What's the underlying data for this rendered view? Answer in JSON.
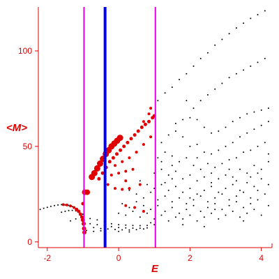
{
  "chart_data": {
    "type": "scatter",
    "title": "",
    "xlabel": "E",
    "ylabel": "<M>",
    "xlim": [
      -2.25,
      4.3
    ],
    "ylim": [
      -3,
      123
    ],
    "xticks": [
      -2,
      0,
      2,
      4
    ],
    "yticks": [
      0,
      50,
      100
    ],
    "grid": false,
    "legend": "none",
    "colors": {
      "axis": "#e00000",
      "points": "#000000",
      "highlight": "#e00000",
      "blue_line": "#0000ff",
      "magenta_line": "#e000e0"
    },
    "vertical_lines": [
      {
        "x": -0.97,
        "color": "#e000e0"
      },
      {
        "x": -0.38,
        "color": "#0000ff"
      },
      {
        "x": 1.03,
        "color": "#e000e0"
      }
    ],
    "series": [
      {
        "color": "#000000",
        "marker": "dot",
        "points": [
          [
            -2.2,
            17
          ],
          [
            -2.1,
            17.6
          ],
          [
            -2.0,
            18.1
          ],
          [
            -1.9,
            18.6
          ],
          [
            -1.8,
            19
          ],
          [
            -1.7,
            19.3
          ],
          [
            -1.6,
            19.5
          ],
          [
            -1.5,
            19.4
          ],
          [
            -1.4,
            19.1
          ],
          [
            -1.3,
            18.5
          ],
          [
            -1.2,
            17.5
          ],
          [
            -1.1,
            16
          ],
          [
            -1.6,
            15.5
          ],
          [
            -1.5,
            16
          ],
          [
            -1.4,
            16.4
          ],
          [
            -1.3,
            16.5
          ],
          [
            -1.2,
            16.2
          ],
          [
            -1.1,
            15.5
          ],
          [
            -1.0,
            14.5
          ],
          [
            -1.35,
            11
          ],
          [
            -1.2,
            12
          ],
          [
            -1.0,
            12.5
          ],
          [
            -0.8,
            12.2
          ],
          [
            -0.6,
            11.5
          ],
          [
            -0.4,
            10.5
          ],
          [
            -0.2,
            9.5
          ],
          [
            0.0,
            9
          ],
          [
            0.2,
            8.8
          ],
          [
            0.4,
            8.6
          ],
          [
            0.6,
            8.5
          ],
          [
            0.8,
            8.6
          ],
          [
            1.0,
            9
          ],
          [
            -1.0,
            10
          ],
          [
            -0.8,
            9.5
          ],
          [
            -0.6,
            9
          ],
          [
            -0.4,
            8.5
          ],
          [
            -0.2,
            8
          ],
          [
            0.0,
            7.5
          ],
          [
            0.2,
            7.3
          ],
          [
            0.4,
            7.2
          ],
          [
            0.6,
            7.1
          ],
          [
            0.8,
            7.3
          ],
          [
            -0.7,
            7.5
          ],
          [
            -0.5,
            7
          ],
          [
            -0.3,
            6.8
          ],
          [
            -0.1,
            6.5
          ],
          [
            0.1,
            6.3
          ],
          [
            0.3,
            6.2
          ],
          [
            0.5,
            6.4
          ],
          [
            0.7,
            6.8
          ],
          [
            -0.9,
            6
          ],
          [
            -0.7,
            5.5
          ],
          [
            -0.5,
            5.8
          ],
          [
            0.0,
            5.5
          ],
          [
            0.3,
            5.2
          ],
          [
            1.1,
            74
          ],
          [
            1.3,
            78
          ],
          [
            1.5,
            81
          ],
          [
            1.7,
            85
          ],
          [
            1.9,
            88
          ],
          [
            2.1,
            92
          ],
          [
            2.3,
            96
          ],
          [
            2.5,
            99
          ],
          [
            2.7,
            103
          ],
          [
            2.9,
            106
          ],
          [
            3.1,
            109
          ],
          [
            3.3,
            112
          ],
          [
            3.5,
            114.5
          ],
          [
            3.7,
            117
          ],
          [
            3.9,
            119
          ],
          [
            4.1,
            121
          ],
          [
            1.9,
            74
          ],
          [
            2.1,
            70
          ],
          [
            2.3,
            74
          ],
          [
            2.5,
            77
          ],
          [
            2.7,
            80
          ],
          [
            2.9,
            83
          ],
          [
            3.1,
            86
          ],
          [
            3.3,
            88
          ],
          [
            3.5,
            90
          ],
          [
            3.7,
            92
          ],
          [
            3.9,
            94
          ],
          [
            4.1,
            96
          ],
          [
            1.6,
            62
          ],
          [
            1.8,
            64
          ],
          [
            2.0,
            65
          ],
          [
            2.2,
            64
          ],
          [
            2.4,
            60
          ],
          [
            2.6,
            57
          ],
          [
            2.8,
            58
          ],
          [
            3.0,
            60
          ],
          [
            3.2,
            63
          ],
          [
            3.4,
            65
          ],
          [
            3.6,
            67
          ],
          [
            3.8,
            68
          ],
          [
            4.0,
            69
          ],
          [
            4.2,
            70
          ],
          [
            1.2,
            52
          ],
          [
            1.4,
            56
          ],
          [
            1.6,
            58
          ],
          [
            1.8,
            55
          ],
          [
            2.0,
            50
          ],
          [
            2.2,
            51
          ],
          [
            2.4,
            47
          ],
          [
            2.6,
            46
          ],
          [
            2.8,
            48
          ],
          [
            3.0,
            50
          ],
          [
            3.2,
            52
          ],
          [
            3.4,
            55
          ],
          [
            3.6,
            57
          ],
          [
            3.8,
            59
          ],
          [
            4.0,
            61
          ],
          [
            4.2,
            63
          ],
          [
            1.1,
            44
          ],
          [
            1.3,
            47
          ],
          [
            1.5,
            45
          ],
          [
            1.7,
            42
          ],
          [
            1.9,
            44
          ],
          [
            2.1,
            40
          ],
          [
            2.3,
            38
          ],
          [
            2.5,
            41
          ],
          [
            2.7,
            39
          ],
          [
            2.9,
            41
          ],
          [
            3.1,
            43
          ],
          [
            3.3,
            44
          ],
          [
            3.5,
            47
          ],
          [
            3.7,
            48
          ],
          [
            3.9,
            50
          ],
          [
            4.1,
            52
          ],
          [
            1.0,
            36
          ],
          [
            1.2,
            38
          ],
          [
            1.4,
            35
          ],
          [
            1.6,
            37
          ],
          [
            1.8,
            33
          ],
          [
            2.0,
            35
          ],
          [
            2.2,
            32
          ],
          [
            2.4,
            34
          ],
          [
            2.6,
            31
          ],
          [
            2.8,
            33
          ],
          [
            3.0,
            35
          ],
          [
            3.2,
            34
          ],
          [
            3.4,
            38
          ],
          [
            3.6,
            36
          ],
          [
            3.8,
            40
          ],
          [
            4.0,
            38
          ],
          [
            4.2,
            42
          ],
          [
            0.6,
            32
          ],
          [
            0.8,
            30
          ],
          [
            1.0,
            28
          ],
          [
            1.2,
            30
          ],
          [
            1.4,
            27
          ],
          [
            1.6,
            29
          ],
          [
            1.8,
            26
          ],
          [
            2.0,
            28
          ],
          [
            2.2,
            25
          ],
          [
            2.4,
            27
          ],
          [
            2.6,
            29
          ],
          [
            2.8,
            26
          ],
          [
            3.0,
            28
          ],
          [
            3.2,
            30
          ],
          [
            3.4,
            27
          ],
          [
            3.6,
            31
          ],
          [
            3.8,
            29
          ],
          [
            4.0,
            33
          ],
          [
            4.2,
            30
          ],
          [
            0.3,
            27
          ],
          [
            0.5,
            25
          ],
          [
            0.7,
            23
          ],
          [
            0.9,
            26
          ],
          [
            1.1,
            22
          ],
          [
            1.3,
            24
          ],
          [
            1.5,
            21
          ],
          [
            1.7,
            23
          ],
          [
            1.9,
            20
          ],
          [
            2.1,
            22
          ],
          [
            2.3,
            24
          ],
          [
            2.5,
            21
          ],
          [
            2.7,
            23
          ],
          [
            2.9,
            25
          ],
          [
            3.1,
            22
          ],
          [
            3.3,
            24
          ],
          [
            3.5,
            26
          ],
          [
            3.7,
            23
          ],
          [
            3.9,
            27
          ],
          [
            4.1,
            25
          ],
          [
            0.1,
            20
          ],
          [
            0.3,
            18
          ],
          [
            0.5,
            21
          ],
          [
            0.7,
            19
          ],
          [
            0.9,
            17
          ],
          [
            1.1,
            19
          ],
          [
            1.3,
            16
          ],
          [
            1.5,
            18
          ],
          [
            1.7,
            15
          ],
          [
            1.9,
            17
          ],
          [
            2.1,
            19
          ],
          [
            2.3,
            16
          ],
          [
            2.5,
            18
          ],
          [
            2.7,
            20
          ],
          [
            2.9,
            17
          ],
          [
            3.1,
            19
          ],
          [
            3.3,
            21
          ],
          [
            3.5,
            18
          ],
          [
            3.7,
            20
          ],
          [
            3.9,
            22
          ],
          [
            4.2,
            19
          ],
          [
            0.0,
            15
          ],
          [
            0.2,
            14
          ],
          [
            0.4,
            16
          ],
          [
            0.6,
            13
          ],
          [
            0.8,
            15
          ],
          [
            1.0,
            12
          ],
          [
            1.2,
            14
          ],
          [
            1.4,
            11
          ],
          [
            1.6,
            13
          ],
          [
            1.8,
            12
          ],
          [
            2.0,
            14
          ],
          [
            2.2,
            11
          ],
          [
            2.4,
            13
          ],
          [
            2.6,
            15
          ],
          [
            2.8,
            12
          ],
          [
            3.0,
            14
          ],
          [
            3.2,
            16
          ],
          [
            3.4,
            13
          ],
          [
            3.6,
            15
          ],
          [
            3.8,
            17
          ],
          [
            4.0,
            14
          ],
          [
            1.2,
            42
          ],
          [
            1.5,
            40
          ],
          [
            2.2,
            44
          ],
          [
            2.6,
            36
          ],
          [
            3.3,
            32
          ],
          [
            3.7,
            34
          ],
          [
            1.3,
            31
          ],
          [
            2.0,
            23
          ],
          [
            2.7,
            17
          ],
          [
            3.5,
            11
          ],
          [
            1.8,
            9
          ],
          [
            2.4,
            8
          ],
          [
            0.9,
            10
          ],
          [
            1.5,
            33
          ],
          [
            3.1,
            38
          ],
          [
            3.9,
            36
          ],
          [
            4.2,
            46
          ]
        ]
      },
      {
        "color": "#e00000",
        "marker": "scaled",
        "points": [
          [
            -1.55,
            19.5,
            2
          ],
          [
            -1.45,
            19.3,
            2
          ],
          [
            -1.35,
            18.8,
            2
          ],
          [
            -1.25,
            18,
            2
          ],
          [
            -1.18,
            17,
            2.5
          ],
          [
            -1.12,
            16,
            2.5
          ],
          [
            -1.07,
            14.5,
            2.5
          ],
          [
            -1.03,
            13,
            2.5
          ],
          [
            -1.0,
            11.5,
            3
          ],
          [
            -0.98,
            9.5,
            3
          ],
          [
            -0.97,
            7,
            3
          ],
          [
            -0.96,
            5,
            3
          ],
          [
            -1.0,
            20,
            2.5
          ],
          [
            -0.95,
            26,
            4
          ],
          [
            -0.88,
            26,
            4
          ],
          [
            -0.75,
            34,
            4.5
          ],
          [
            -0.68,
            36,
            4.5
          ],
          [
            -0.6,
            38.5,
            4.5
          ],
          [
            -0.52,
            41,
            4.5
          ],
          [
            -0.44,
            43.5,
            4.5
          ],
          [
            -0.36,
            46,
            4.5
          ],
          [
            -0.28,
            48,
            4.5
          ],
          [
            -0.2,
            50,
            4.5
          ],
          [
            -0.12,
            51.5,
            4.5
          ],
          [
            -0.04,
            53,
            4.5
          ],
          [
            0.04,
            54.5,
            4.5
          ],
          [
            -0.55,
            33,
            2.5
          ],
          [
            -0.45,
            36,
            2.5
          ],
          [
            -0.35,
            39,
            2.5
          ],
          [
            -0.25,
            42,
            2.5
          ],
          [
            -0.15,
            44,
            2.5
          ],
          [
            -0.05,
            46,
            2.5
          ],
          [
            0.05,
            48,
            2.5
          ],
          [
            0.15,
            50,
            2.5
          ],
          [
            0.25,
            52,
            2.5
          ],
          [
            0.35,
            54,
            2.5
          ],
          [
            0.45,
            56,
            2.5
          ],
          [
            0.55,
            58,
            2.5
          ],
          [
            0.65,
            60,
            2.5
          ],
          [
            0.75,
            61.5,
            2.5
          ],
          [
            0.85,
            63,
            2.5
          ],
          [
            0.95,
            65,
            2.5
          ],
          [
            1.0,
            66,
            2.5
          ],
          [
            -0.1,
            40,
            2
          ],
          [
            0.1,
            42,
            2
          ],
          [
            0.3,
            44,
            2
          ],
          [
            0.5,
            47,
            2
          ],
          [
            0.7,
            51,
            2
          ],
          [
            0.9,
            55,
            2
          ],
          [
            -0.2,
            35,
            2
          ],
          [
            0.0,
            36,
            2
          ],
          [
            0.2,
            37,
            2
          ],
          [
            0.4,
            38,
            2
          ],
          [
            -0.1,
            28,
            2
          ],
          [
            0.1,
            27.5,
            2
          ],
          [
            0.3,
            28,
            2
          ],
          [
            -0.3,
            30,
            2
          ],
          [
            0.2,
            32,
            2
          ],
          [
            0.6,
            30,
            2
          ],
          [
            0.2,
            19,
            2
          ],
          [
            0.45,
            18,
            2
          ],
          [
            0.7,
            16,
            2
          ],
          [
            0.7,
            63,
            2
          ],
          [
            0.85,
            67,
            2
          ],
          [
            0.9,
            70,
            2
          ]
        ]
      }
    ]
  }
}
